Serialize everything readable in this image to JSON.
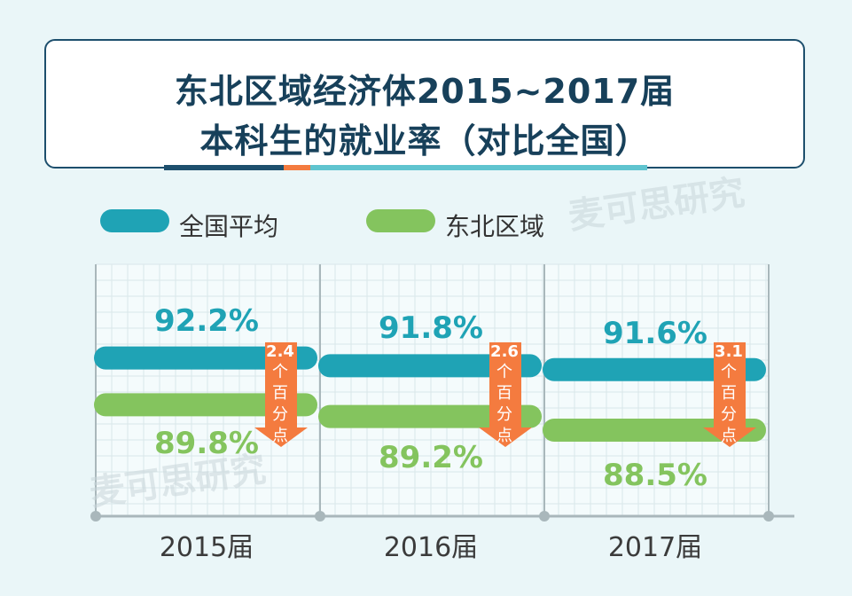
{
  "title": {
    "line1": "东北区域经济体2015~2017届",
    "line2": "本科生的就业率（对比全国）"
  },
  "watermark": "麦可思研究",
  "colors": {
    "national": "#1fa3b5",
    "northeast": "#84c45e",
    "arrow": "#f47b3f",
    "title_border": "#1d4f6d"
  },
  "chart_data": {
    "type": "bar",
    "categories": [
      "2015届",
      "2016届",
      "2017届"
    ],
    "series": [
      {
        "name": "全国平均",
        "values": [
          92.2,
          91.8,
          91.6
        ],
        "labels": [
          "92.2%",
          "91.8%",
          "91.6%"
        ]
      },
      {
        "name": "东北区域",
        "values": [
          89.8,
          89.2,
          88.5
        ],
        "labels": [
          "89.8%",
          "89.2%",
          "88.5%"
        ]
      }
    ],
    "differences": [
      "2.4",
      "2.6",
      "3.1"
    ],
    "difference_unit": [
      "个",
      "百",
      "分",
      "点"
    ],
    "legend_position": "top-left",
    "grid": true
  }
}
